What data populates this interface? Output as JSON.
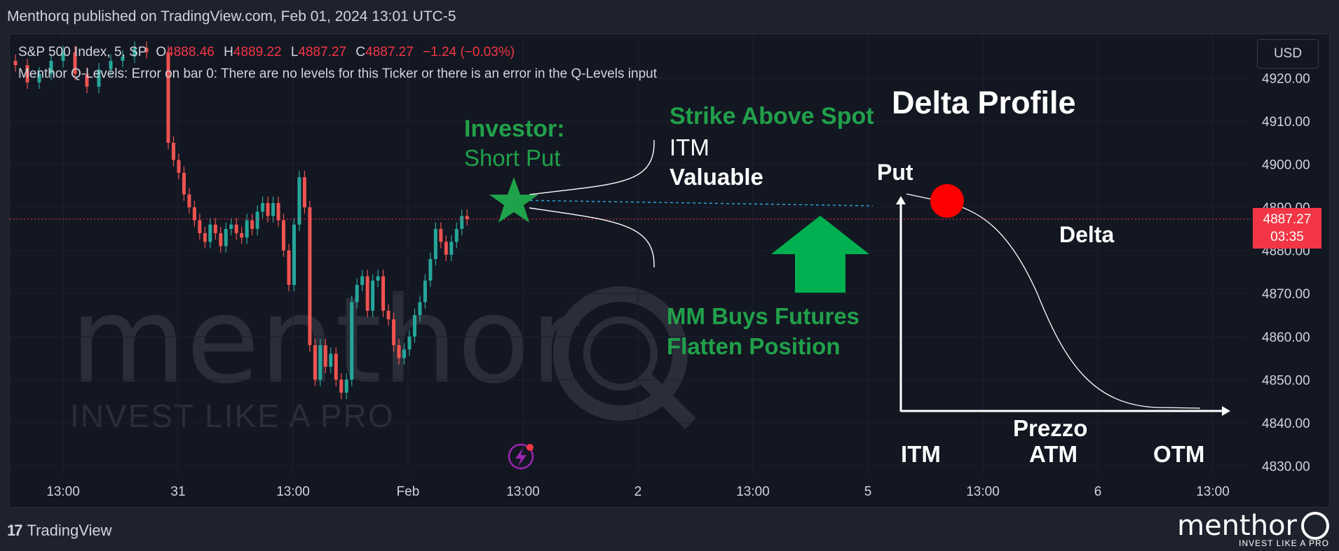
{
  "header": {
    "published": "Menthorq published on TradingView.com, Feb 01, 2024 13:01 UTC-5"
  },
  "legend": {
    "symbol": "S&P 500 Index, 5, SP",
    "o_label": "O",
    "o_value": "4888.46",
    "h_label": "H",
    "h_value": "4889.22",
    "l_label": "L",
    "l_value": "4887.27",
    "c_label": "C",
    "c_value": "4887.27",
    "change": "−1.24 (−0.03%)",
    "indicator_error": "Menthor Q-Levels: Error on bar 0: There are no levels for this Ticker or there is an error in the Q-Levels input"
  },
  "currency_button": "USD",
  "last_price": {
    "value": "4887.27",
    "countdown": "03:35"
  },
  "footer": {
    "tradingview": "TradingView",
    "tv_mark": "17"
  },
  "brand": {
    "name": "menthor",
    "tagline": "INVEST LIKE A PRO"
  },
  "watermark": {
    "name": "menthor",
    "tagline": "INVEST LIKE A PRO",
    "q": "Q"
  },
  "colors": {
    "background": "#131722",
    "frame": "#1e222d",
    "up": "#26a69a",
    "down": "#ef5350",
    "accent_green": "#21a04a",
    "white": "#ffffff",
    "red": "#f23645",
    "dotted_blue": "#2ea2d3"
  },
  "annotations": {
    "investor": "Investor:",
    "short_put": "Short Put",
    "strike_above_spot": "Strike Above Spot",
    "itm_word": "ITM",
    "valuable": "Valuable",
    "delta_profile": "Delta Profile",
    "mm_buys": "MM Buys Futures",
    "flatten": "Flatten Position",
    "put": "Put",
    "delta": "Delta",
    "prezzo": "Prezzo",
    "itm": "ITM",
    "atm": "ATM",
    "otm": "OTM"
  },
  "icons": [
    "star-icon",
    "up-arrow-icon",
    "red-dot-icon",
    "lightning-icon",
    "tradingview-logo-icon",
    "menthor-q-icon"
  ],
  "chart_data": {
    "type": "candlestick",
    "title": "S&P 500 Index, 5, SP",
    "ylim": [
      4826,
      4930
    ],
    "yticks": [
      "4920.00",
      "4910.00",
      "4900.00",
      "4890.00",
      "4880.00",
      "4870.00",
      "4860.00",
      "4850.00",
      "4840.00",
      "4830.00"
    ],
    "xticks": [
      "13:00",
      "31",
      "13:00",
      "Feb",
      "13:00",
      "2",
      "13:00",
      "5",
      "13:00",
      "6",
      "13:00"
    ],
    "last_price": 4887.27,
    "grid": true,
    "price_series_approx": [
      4923,
      4919,
      4921,
      4924,
      4926,
      4921,
      4918,
      4922,
      4924,
      4925,
      4927,
      4926,
      4905,
      4901,
      4898,
      4893,
      4890,
      4887,
      4884,
      4882,
      4886,
      4884,
      4881,
      4885,
      4886,
      4884,
      4883,
      4887,
      4885,
      4889,
      4891,
      4888,
      4891,
      4887,
      4880,
      4872,
      4886,
      4897,
      4890,
      4858,
      4850,
      4858,
      4853,
      4856,
      4850,
      4847,
      4850,
      4868,
      4872,
      4874,
      4866,
      4873,
      4874,
      4866,
      4864,
      4858,
      4855,
      4857,
      4860,
      4865,
      4868,
      4873,
      4878,
      4885,
      4882,
      4879,
      4882,
      4885,
      4888,
      4887.27
    ],
    "delta_profile": {
      "title": "Delta Profile",
      "xlabel": "Prezzo",
      "series": "Put",
      "curve_label": "Delta",
      "x_categories": [
        "ITM",
        "ATM",
        "OTM"
      ]
    }
  }
}
